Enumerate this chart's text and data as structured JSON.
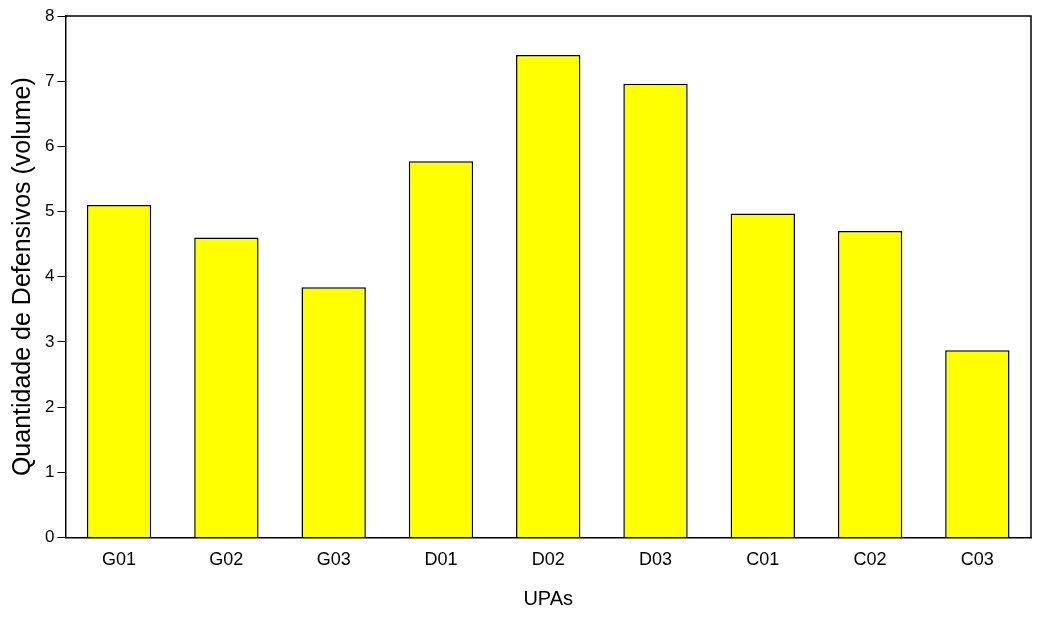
{
  "chart_data": {
    "type": "bar",
    "xlabel": "UPAs",
    "ylabel": "Quantidade de Defensivos (volume)",
    "categories": [
      "G01",
      "G02",
      "G03",
      "D01",
      "D02",
      "D03",
      "C01",
      "C02",
      "C03"
    ],
    "values": [
      5.1,
      4.6,
      3.84,
      5.77,
      7.4,
      6.96,
      4.97,
      4.7,
      2.87
    ],
    "color": "#ffff00",
    "ylim": [
      0,
      8
    ],
    "yticks": [
      0,
      1,
      2,
      3,
      4,
      5,
      6,
      7,
      8
    ],
    "grid": false,
    "legend": false
  }
}
